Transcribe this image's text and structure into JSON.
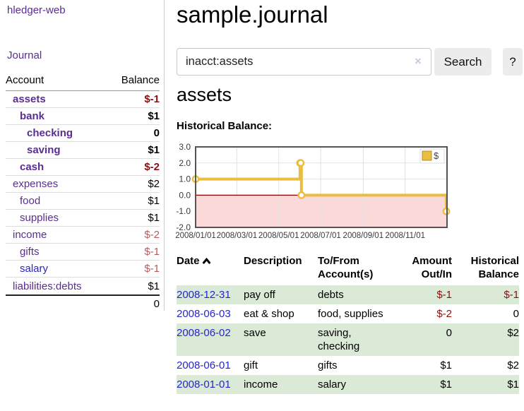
{
  "app": {
    "title": "hledger-web",
    "nav_journal": "Journal"
  },
  "sidebar": {
    "header": {
      "account": "Account",
      "balance": "Balance"
    },
    "accounts": [
      {
        "name": "assets",
        "indent": 1,
        "bold": true,
        "balance": "$-1",
        "negative": "strong",
        "link": "purple"
      },
      {
        "name": "bank",
        "indent": 2,
        "bold": true,
        "balance": "$1",
        "negative": "none",
        "link": "purple"
      },
      {
        "name": "checking",
        "indent": 3,
        "bold": true,
        "balance": "0",
        "negative": "none",
        "link": "purple"
      },
      {
        "name": "saving",
        "indent": 3,
        "bold": true,
        "balance": "$1",
        "negative": "none",
        "link": "purple"
      },
      {
        "name": "cash",
        "indent": 2,
        "bold": true,
        "balance": "$-2",
        "negative": "strong",
        "link": "purple"
      },
      {
        "name": "expenses",
        "indent": 1,
        "bold": false,
        "balance": "$2",
        "negative": "none",
        "link": "purple"
      },
      {
        "name": "food",
        "indent": 2,
        "bold": false,
        "balance": "$1",
        "negative": "none",
        "link": "purple"
      },
      {
        "name": "supplies",
        "indent": 2,
        "bold": false,
        "balance": "$1",
        "negative": "none",
        "link": "purple"
      },
      {
        "name": "income",
        "indent": 1,
        "bold": false,
        "balance": "$-2",
        "negative": "soft",
        "link": "purple"
      },
      {
        "name": "gifts",
        "indent": 2,
        "bold": false,
        "balance": "$-1",
        "negative": "soft",
        "link": "purple"
      },
      {
        "name": "salary",
        "indent": 2,
        "bold": false,
        "balance": "$-1",
        "negative": "soft",
        "link": "blue"
      },
      {
        "name": "liabilities:debts",
        "indent": 1,
        "bold": false,
        "balance": "$1",
        "negative": "none",
        "link": "purple"
      }
    ],
    "total": "0"
  },
  "header": {
    "title": "sample.journal"
  },
  "search": {
    "value": "inacct:assets",
    "clear_icon": "×",
    "button": "Search",
    "help_button": "?"
  },
  "account_page": {
    "heading": "assets",
    "chart_label": "Historical Balance:"
  },
  "chart_data": {
    "type": "line",
    "style": "step",
    "title": "Historical Balance",
    "series": [
      {
        "name": "$",
        "color": "#e9bd3f",
        "x_dates": [
          "2008-01-01",
          "2008-06-01",
          "2008-06-02",
          "2008-06-03",
          "2008-12-31"
        ],
        "x_days": [
          0,
          152,
          153,
          154,
          365
        ],
        "values": [
          1,
          2,
          2,
          0,
          -1
        ]
      }
    ],
    "xlim_days": [
      0,
      366
    ],
    "x_ticks": [
      {
        "day": 0,
        "label": "2008/01/01"
      },
      {
        "day": 60,
        "label": "2008/03/01"
      },
      {
        "day": 121,
        "label": "2008/05/01"
      },
      {
        "day": 182,
        "label": "2008/07/01"
      },
      {
        "day": 244,
        "label": "2008/09/01"
      },
      {
        "day": 305,
        "label": "2008/11/01"
      }
    ],
    "y_ticks": [
      3.0,
      2.0,
      1.0,
      0.0,
      -1.0,
      -2.0
    ],
    "ylim": [
      -2.0,
      3.0
    ],
    "grid": true,
    "zero_line_color": "#8b0000",
    "negative_region_color": "#fbd9d9",
    "legend": {
      "label": "$",
      "position": "top-right"
    }
  },
  "register": {
    "columns": [
      "Date",
      "Description",
      "To/From Account(s)",
      "Amount Out/In",
      "Historical Balance"
    ],
    "rows": [
      {
        "date": "2008-12-31",
        "description": "pay off",
        "accounts": "debts",
        "amount": "$-1",
        "amount_negative": true,
        "balance": "$-1",
        "balance_negative": true
      },
      {
        "date": "2008-06-03",
        "description": "eat & shop",
        "accounts": "food, supplies",
        "amount": "$-2",
        "amount_negative": true,
        "balance": "0",
        "balance_negative": false
      },
      {
        "date": "2008-06-02",
        "description": "save",
        "accounts": "saving, checking",
        "amount": "0",
        "amount_negative": false,
        "balance": "$2",
        "balance_negative": false
      },
      {
        "date": "2008-06-01",
        "description": "gift",
        "accounts": "gifts",
        "amount": "$1",
        "amount_negative": false,
        "balance": "$2",
        "balance_negative": false
      },
      {
        "date": "2008-01-01",
        "description": "income",
        "accounts": "salary",
        "amount": "$1",
        "amount_negative": false,
        "balance": "$1",
        "balance_negative": false
      }
    ]
  }
}
